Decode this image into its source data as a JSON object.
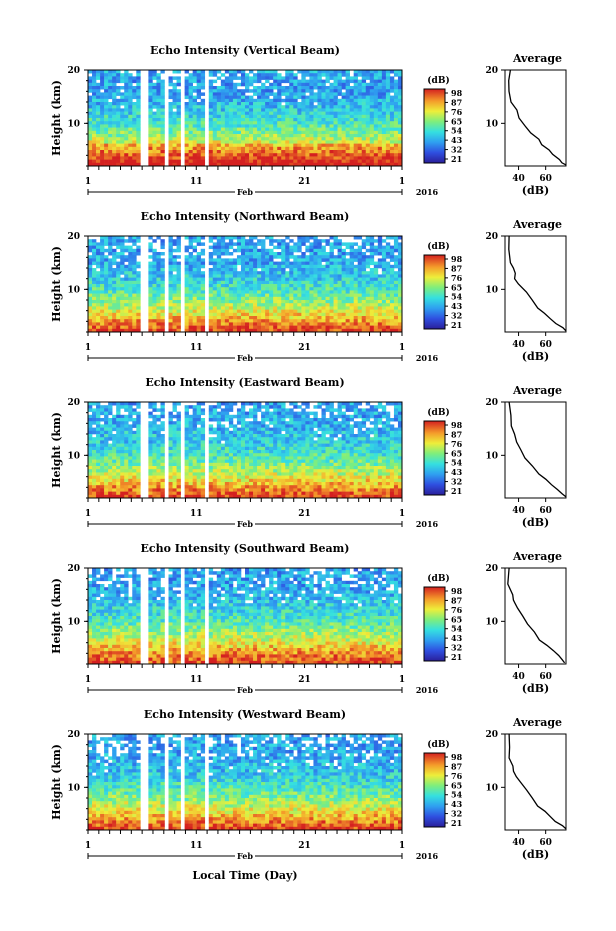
{
  "figure": {
    "xlabel_bottom": "Local Time (Day)"
  },
  "chart_data": [
    {
      "type": "heatmap",
      "title": "Echo Intensity (Vertical Beam)",
      "ylabel": "Height (km)",
      "y_ticks": [
        "20",
        "10"
      ],
      "x_ticks": [
        "1",
        "11",
        "21",
        "1"
      ],
      "month_label": "Feb",
      "year_label": "2016",
      "colorbar": {
        "label": "(dB)",
        "ticks": [
          "98",
          "87",
          "76",
          "65",
          "54",
          "43",
          "32",
          "21"
        ],
        "range": [
          21,
          98
        ]
      },
      "profile": {
        "title": "Average",
        "xlabel": "(dB)",
        "x_ticks": [
          "40",
          "60"
        ],
        "y_ticks": [
          "20",
          "10"
        ],
        "xlim": [
          30,
          75
        ],
        "ylim": [
          2,
          20
        ],
        "points": [
          [
            34,
            20
          ],
          [
            33,
            18
          ],
          [
            33,
            16
          ],
          [
            35,
            14
          ],
          [
            38,
            12.5
          ],
          [
            41,
            11
          ],
          [
            45,
            9.5
          ],
          [
            49,
            8.2
          ],
          [
            54,
            7
          ],
          [
            58,
            6
          ],
          [
            62,
            5
          ],
          [
            66,
            4.2
          ],
          [
            70,
            3.2
          ],
          [
            73,
            2.6
          ],
          [
            75,
            2.2
          ]
        ]
      }
    },
    {
      "type": "heatmap",
      "title": "Echo Intensity (Northward Beam)",
      "ylabel": "Height (km)",
      "y_ticks": [
        "20",
        "10"
      ],
      "x_ticks": [
        "1",
        "11",
        "21",
        "1"
      ],
      "month_label": "Feb",
      "year_label": "2016",
      "colorbar": {
        "label": "(dB)",
        "ticks": [
          "98",
          "87",
          "76",
          "65",
          "54",
          "43",
          "32",
          "21"
        ],
        "range": [
          21,
          98
        ]
      },
      "profile": {
        "title": "Average",
        "xlabel": "(dB)",
        "x_ticks": [
          "40",
          "60"
        ],
        "y_ticks": [
          "20",
          "10"
        ],
        "xlim": [
          30,
          75
        ],
        "ylim": [
          2,
          20
        ],
        "points": [
          [
            33,
            20
          ],
          [
            33,
            17.5
          ],
          [
            34,
            15
          ],
          [
            36,
            14
          ],
          [
            37,
            13
          ],
          [
            38,
            12
          ],
          [
            41,
            11
          ],
          [
            45,
            9.5
          ],
          [
            50,
            8
          ],
          [
            55,
            6.5
          ],
          [
            60,
            5.5
          ],
          [
            64,
            4.5
          ],
          [
            68,
            3.6
          ],
          [
            72,
            2.8
          ],
          [
            75,
            2.2
          ]
        ]
      }
    },
    {
      "type": "heatmap",
      "title": "Echo Intensity (Eastward Beam)",
      "ylabel": "Height (km)",
      "y_ticks": [
        "20",
        "10"
      ],
      "x_ticks": [
        "1",
        "11",
        "21",
        "1"
      ],
      "month_label": "Feb",
      "year_label": "2016",
      "colorbar": {
        "label": "(dB)",
        "ticks": [
          "98",
          "87",
          "76",
          "65",
          "54",
          "43",
          "32",
          "21"
        ],
        "range": [
          21,
          98
        ]
      },
      "profile": {
        "title": "Average",
        "xlabel": "(dB)",
        "x_ticks": [
          "40",
          "60"
        ],
        "y_ticks": [
          "20",
          "10"
        ],
        "xlim": [
          30,
          75
        ],
        "ylim": [
          2,
          20
        ],
        "points": [
          [
            33,
            20
          ],
          [
            34,
            17.5
          ],
          [
            35,
            15.5
          ],
          [
            37,
            14
          ],
          [
            38,
            12.5
          ],
          [
            41,
            11
          ],
          [
            45,
            9.5
          ],
          [
            50,
            8
          ],
          [
            55,
            6.5
          ],
          [
            60,
            5.5
          ],
          [
            64,
            4.5
          ],
          [
            68,
            3.6
          ],
          [
            72,
            2.8
          ],
          [
            75,
            2.2
          ]
        ]
      }
    },
    {
      "type": "heatmap",
      "title": "Echo Intensity (Southward Beam)",
      "ylabel": "Height (km)",
      "y_ticks": [
        "20",
        "10"
      ],
      "x_ticks": [
        "1",
        "11",
        "21",
        "1"
      ],
      "month_label": "Feb",
      "year_label": "2016",
      "colorbar": {
        "label": "(dB)",
        "ticks": [
          "98",
          "87",
          "76",
          "65",
          "54",
          "43",
          "32",
          "21"
        ],
        "range": [
          21,
          98
        ]
      },
      "profile": {
        "title": "Average",
        "xlabel": "(dB)",
        "x_ticks": [
          "40",
          "60"
        ],
        "y_ticks": [
          "20",
          "10"
        ],
        "xlim": [
          30,
          75
        ],
        "ylim": [
          2,
          20
        ],
        "points": [
          [
            33,
            20
          ],
          [
            33,
            17
          ],
          [
            35,
            15
          ],
          [
            36,
            14
          ],
          [
            38,
            13.5
          ],
          [
            39,
            12.5
          ],
          [
            42,
            11
          ],
          [
            46,
            9.5
          ],
          [
            51,
            8
          ],
          [
            56,
            6.5
          ],
          [
            61,
            5.5
          ],
          [
            65,
            4.5
          ],
          [
            69,
            3.6
          ],
          [
            72,
            2.8
          ],
          [
            74,
            2.2
          ]
        ]
      }
    },
    {
      "type": "heatmap",
      "title": "Echo Intensity (Westward Beam)",
      "ylabel": "Height (km)",
      "y_ticks": [
        "20",
        "10"
      ],
      "x_ticks": [
        "1",
        "11",
        "21",
        "1"
      ],
      "month_label": "Feb",
      "year_label": "2016",
      "colorbar": {
        "label": "(dB)",
        "ticks": [
          "98",
          "87",
          "76",
          "65",
          "54",
          "43",
          "32",
          "21"
        ],
        "range": [
          21,
          98
        ]
      },
      "profile": {
        "title": "Average",
        "xlabel": "(dB)",
        "x_ticks": [
          "40",
          "60"
        ],
        "y_ticks": [
          "20",
          "10"
        ],
        "xlim": [
          30,
          75
        ],
        "ylim": [
          2,
          20
        ],
        "points": [
          [
            33,
            20
          ],
          [
            33,
            17.5
          ],
          [
            34,
            15.5
          ],
          [
            36,
            14
          ],
          [
            37,
            13
          ],
          [
            38,
            12
          ],
          [
            41,
            11
          ],
          [
            45,
            9.5
          ],
          [
            50,
            8
          ],
          [
            55,
            6.5
          ],
          [
            60,
            5.5
          ],
          [
            64,
            4.5
          ],
          [
            68,
            3.6
          ],
          [
            72,
            2.8
          ],
          [
            75,
            2.2
          ]
        ]
      }
    }
  ]
}
